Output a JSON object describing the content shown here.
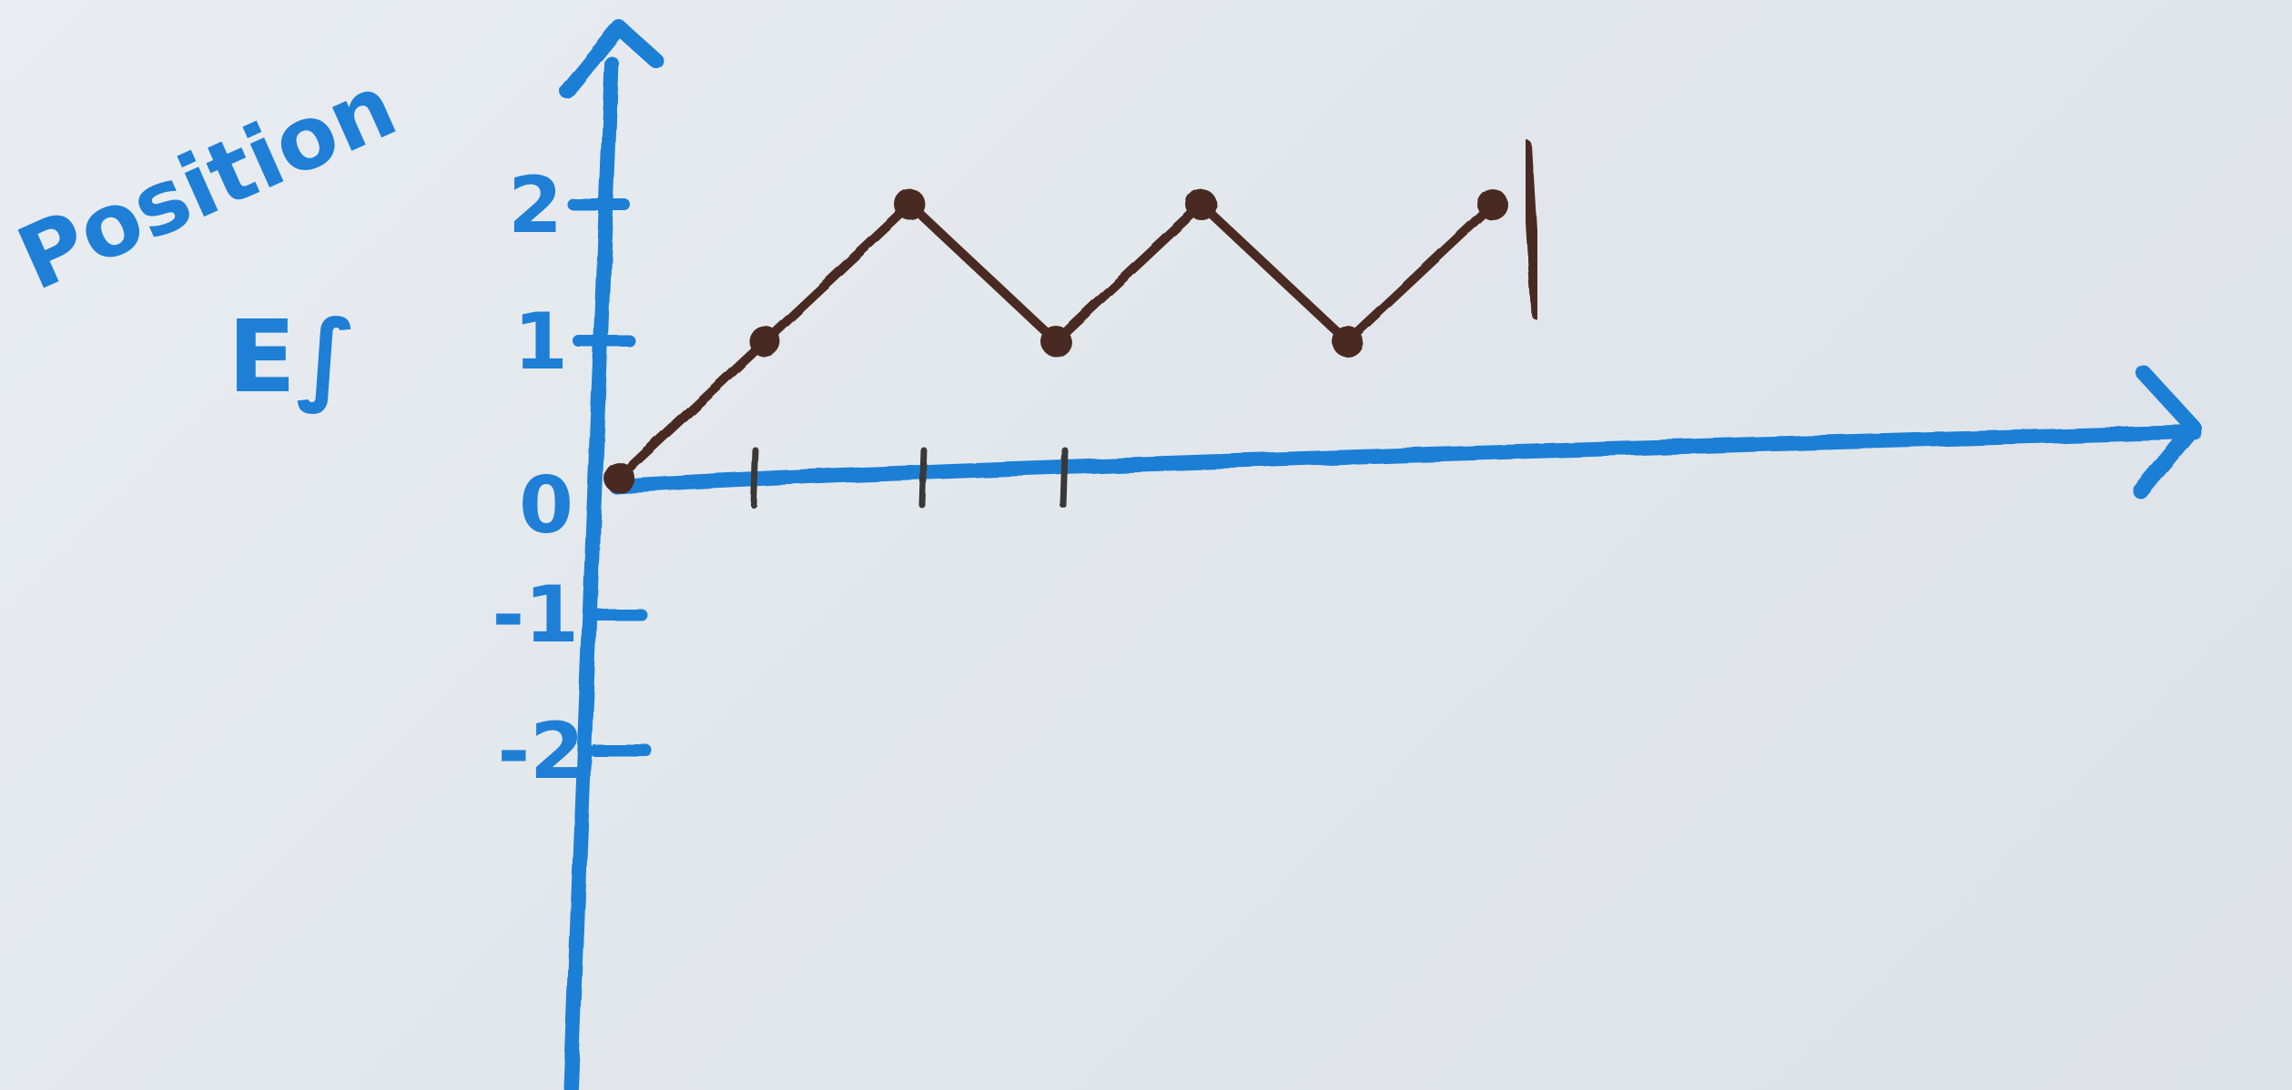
{
  "chart_data": {
    "type": "line",
    "title": "",
    "xlabel": "",
    "ylabel": "Position",
    "ylabel_units": "E∫",
    "yticks": [
      "2",
      "1",
      "0",
      "-1",
      "-2"
    ],
    "ylim": [
      -2,
      2
    ],
    "xlim": [
      0,
      9.5
    ],
    "grid": false,
    "series": [
      {
        "x": [
          0,
          1,
          2,
          3,
          4,
          5,
          6
        ],
        "y": [
          0,
          1,
          2,
          1,
          2,
          1,
          2
        ],
        "color": "#4a2a22"
      }
    ],
    "annotations": [
      "vertical bar after last point"
    ],
    "axis_color": "#1f7fd6",
    "line_color": "#4a2a22",
    "paper_color": "#e6eaee"
  }
}
